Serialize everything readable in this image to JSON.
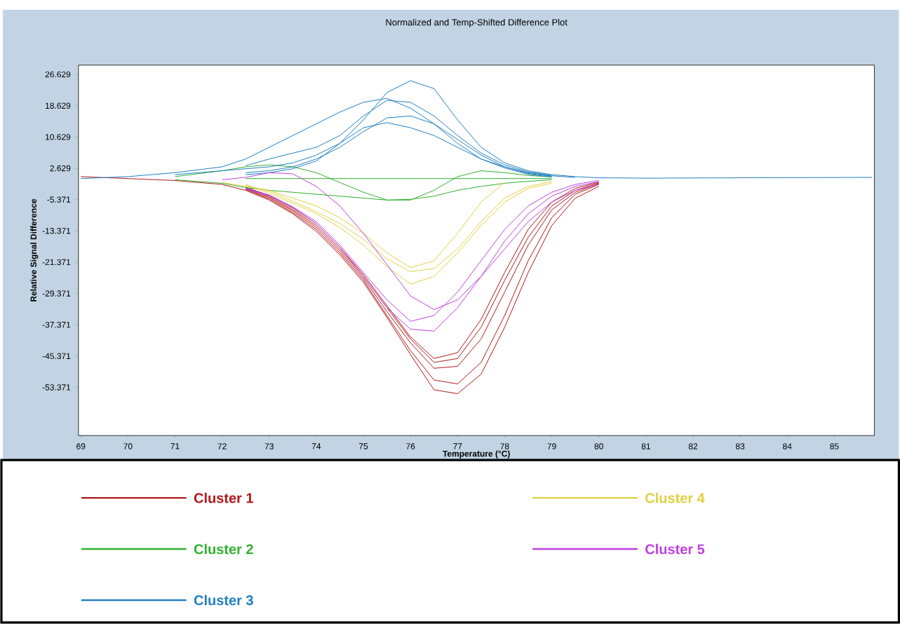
{
  "chart_data": {
    "type": "line",
    "title": "Normalized and Temp-Shifted Difference Plot",
    "xlabel": "Temperature (°C)",
    "ylabel": "Relative Signal Difference",
    "x": [
      69,
      70,
      71,
      72,
      72.5,
      73,
      73.5,
      74,
      74.5,
      75,
      75.5,
      76,
      76.5,
      77,
      77.5,
      78,
      78.5,
      79,
      79.5,
      80,
      81,
      83,
      85.8
    ],
    "xlim": [
      68.95,
      85.85
    ],
    "ylim": [
      -65.7,
      29
    ],
    "xticks": [
      69,
      70,
      71,
      72,
      73,
      74,
      75,
      76,
      77,
      78,
      79,
      80,
      81,
      82,
      83,
      84,
      85
    ],
    "yticks": [
      26.629,
      18.629,
      10.629,
      2.629,
      -5.371,
      -13.371,
      -21.371,
      -29.371,
      -37.371,
      -45.371,
      -53.371
    ],
    "grid": false,
    "legend": "bottom",
    "marker": "none",
    "line_style": "solid",
    "series": [
      {
        "name": "Cluster 1",
        "color": "#b01818",
        "values": [
          0.5,
          0,
          -0.5,
          -1.5,
          -3,
          -5.5,
          -9,
          -13.5,
          -19.5,
          -26.5,
          -35.5,
          -45,
          -54,
          -55,
          -50,
          -38,
          -24,
          -12,
          -5,
          -2,
          null,
          null,
          null
        ]
      },
      {
        "color": "#b01818",
        "values": [
          null,
          null,
          null,
          null,
          -2.8,
          -5.2,
          -8.7,
          -13,
          -19,
          -26,
          -35,
          -44,
          -51.5,
          -52.5,
          -47,
          -35,
          -21,
          -10,
          -4,
          -1.5,
          null,
          null,
          null
        ]
      },
      {
        "color": "#b01818",
        "values": [
          null,
          null,
          null,
          null,
          -2.6,
          -4.9,
          -8.3,
          -12.5,
          -18.5,
          -25.5,
          -34,
          -42,
          -48.5,
          -48,
          -41,
          -29,
          -17,
          -8,
          -3.5,
          -1.3,
          null,
          null,
          null
        ]
      },
      {
        "color": "#b01818",
        "values": [
          null,
          null,
          null,
          null,
          -2.4,
          -4.6,
          -8,
          -12,
          -18,
          -25,
          -33,
          -41,
          -47,
          -46,
          -38,
          -26,
          -15,
          -7,
          -3,
          -1.1,
          null,
          null,
          null
        ]
      },
      {
        "color": "#b01818",
        "values": [
          null,
          null,
          null,
          null,
          -2.2,
          -4.3,
          -7.6,
          -11.5,
          -17.5,
          -24.5,
          -32.5,
          -40.5,
          -46,
          -44.5,
          -36,
          -24,
          -13,
          -6,
          -2.5,
          -0.9,
          null,
          null,
          null
        ]
      },
      {
        "name": "Cluster 2",
        "color": "#30b030",
        "values": [
          null,
          null,
          0.5,
          2,
          3,
          3.5,
          3,
          1.5,
          -1,
          -3.5,
          -5.5,
          -5.5,
          -3,
          0.5,
          2,
          1.5,
          0.8,
          0.4,
          null,
          null,
          null,
          null,
          null
        ]
      },
      {
        "color": "#30b030",
        "values": [
          null,
          null,
          -0.3,
          -1.2,
          -2.3,
          -3,
          -3.5,
          -4,
          -4.5,
          -5,
          -5.5,
          -5.3,
          -4.5,
          -3,
          -2,
          -1.2,
          -0.7,
          -0.3,
          null,
          null,
          null,
          null,
          null
        ]
      },
      {
        "color": "#30b030",
        "values": [
          null,
          null,
          null,
          null,
          0,
          0,
          0,
          0,
          0,
          0,
          0,
          0,
          0,
          0,
          0,
          0,
          0,
          0,
          null,
          null,
          null,
          null,
          null
        ]
      },
      {
        "name": "Cluster 3",
        "color": "#2080c0",
        "values": [
          null,
          null,
          1,
          2,
          2.5,
          3,
          4,
          6,
          9,
          15,
          22,
          25,
          23,
          15,
          8,
          4,
          2,
          1,
          0.5,
          0.2,
          0.1,
          0.2,
          0.3
        ]
      },
      {
        "color": "#2080c0",
        "values": [
          0,
          0.5,
          1.5,
          3,
          5,
          8,
          11,
          14,
          17,
          19.5,
          20.5,
          18,
          14,
          9,
          5,
          3,
          1.5,
          0.7,
          0.3,
          null,
          null,
          null,
          null
        ]
      },
      {
        "color": "#2080c0",
        "values": [
          null,
          null,
          null,
          null,
          3.3,
          5,
          6.5,
          8,
          11,
          16,
          20,
          19.5,
          16,
          11,
          6.5,
          3.5,
          1.7,
          0.8,
          null,
          null,
          null,
          null,
          null
        ]
      },
      {
        "color": "#2080c0",
        "values": [
          null,
          null,
          null,
          null,
          1.5,
          2,
          3,
          5,
          8,
          12,
          15.5,
          16,
          14,
          10,
          6,
          3,
          1.3,
          0.6,
          null,
          null,
          null,
          null,
          null
        ]
      },
      {
        "color": "#2080c0",
        "values": [
          null,
          null,
          null,
          null,
          1,
          1.5,
          2.5,
          4.5,
          9,
          13,
          14.3,
          13,
          11,
          8,
          5,
          2.7,
          1.1,
          0.4,
          null,
          null,
          null,
          null,
          null
        ]
      },
      {
        "name": "Cluster 4",
        "color": "#e0d040",
        "values": [
          null,
          null,
          null,
          -1,
          -2,
          -3,
          -5,
          -7,
          -10,
          -14,
          -19,
          -22.8,
          -21,
          -14,
          -6,
          -1,
          null,
          null,
          null,
          null,
          null,
          null,
          null
        ]
      },
      {
        "color": "#e0d040",
        "values": [
          null,
          null,
          null,
          null,
          -1.7,
          -3.3,
          -5.8,
          -8.5,
          -11.5,
          -15.5,
          -20.5,
          -23.8,
          -23,
          -18,
          -11,
          -5,
          -2,
          -0.8,
          null,
          null,
          null,
          null,
          null
        ]
      },
      {
        "color": "#e0d040",
        "values": [
          null,
          null,
          null,
          null,
          -1.5,
          -3.8,
          -6.3,
          -9,
          -12.5,
          -17,
          -22.5,
          -27,
          -25,
          -19,
          -12,
          -6,
          -2.5,
          -1.2,
          null,
          null,
          null,
          null,
          null
        ]
      },
      {
        "name": "Cluster 5",
        "color": "#c040e0",
        "values": [
          null,
          null,
          null,
          -0.3,
          0.3,
          1.5,
          1.2,
          -2,
          -7,
          -14,
          -22,
          -30,
          -33.5,
          -31,
          -25,
          -18,
          -11,
          -6,
          -3,
          -1.5,
          null,
          null,
          null
        ]
      },
      {
        "color": "#c040e0",
        "values": [
          null,
          null,
          null,
          null,
          -2.5,
          -4.2,
          -7.2,
          -11,
          -17,
          -24,
          -31,
          -36.5,
          -35,
          -29,
          -21,
          -13,
          -7,
          -3.5,
          -1.5,
          -0.5,
          null,
          null,
          null
        ]
      },
      {
        "color": "#c040e0",
        "values": [
          null,
          null,
          null,
          null,
          -2.7,
          -4.4,
          -7.4,
          -11.5,
          -17.5,
          -25,
          -33,
          -38.5,
          -39,
          -33,
          -25,
          -16,
          -9,
          -4.5,
          -2,
          -0.8,
          null,
          null,
          null
        ]
      }
    ]
  }
}
